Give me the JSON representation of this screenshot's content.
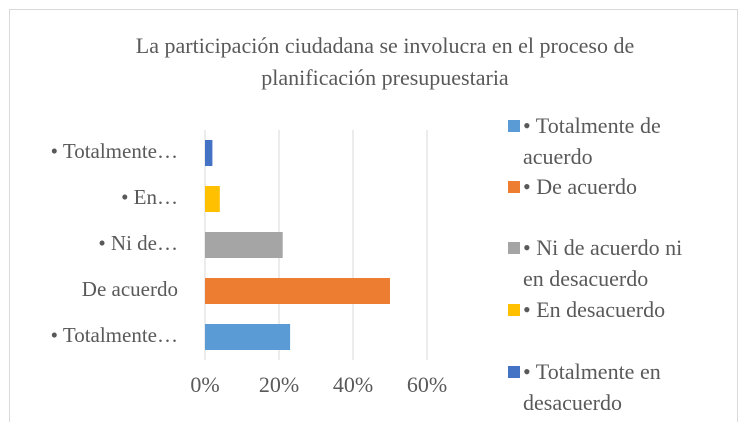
{
  "chart_data": {
    "type": "hbar",
    "title": "La participación ciudadana se involucra en el proceso de planificación presupuestaria",
    "categories": [
      "• Totalmente…",
      "De acuerdo",
      "• Ni de…",
      "• En…",
      "• Totalmente…"
    ],
    "values": [
      23,
      50,
      21,
      4,
      2
    ],
    "colors": [
      "#5b9bd5",
      "#ed7d31",
      "#a5a5a5",
      "#ffc000",
      "#4472c4"
    ],
    "legend": [
      "• Totalmente de acuerdo",
      "• De acuerdo",
      "• Ni de acuerdo ni en desacuerdo",
      "• En desacuerdo",
      "• Totalmente en desacuerdo"
    ],
    "xlim": [
      0,
      60
    ],
    "xticks": [
      {
        "value": 0,
        "label": "0%"
      },
      {
        "value": 20,
        "label": "20%"
      },
      {
        "value": 40,
        "label": "40%"
      },
      {
        "value": 60,
        "label": "60%"
      }
    ],
    "grid": true,
    "legend_position": "right"
  }
}
